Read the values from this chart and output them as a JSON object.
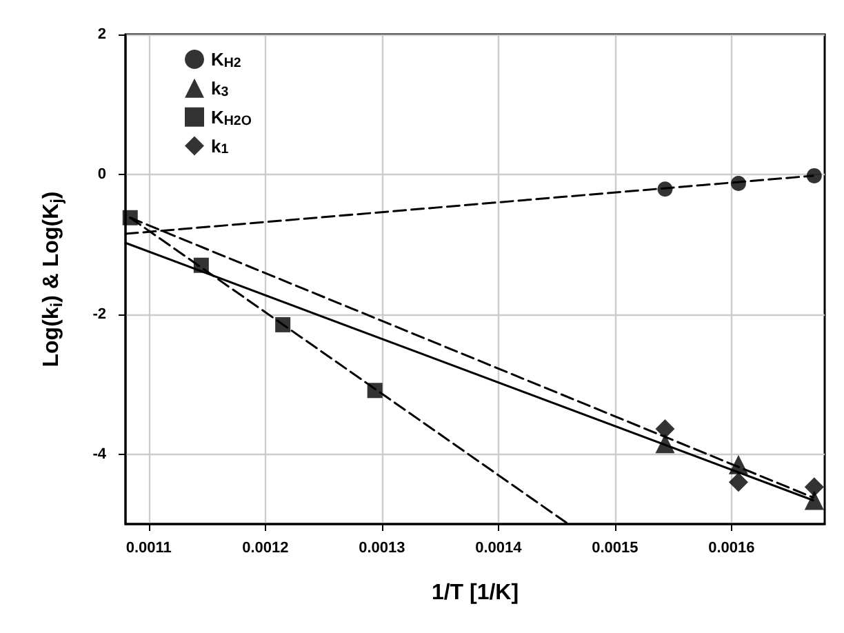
{
  "chart_data": {
    "type": "scatter",
    "xlabel": "1/T [1/K]",
    "ylabel": "Log(k$_{i}$) & Log(K$_{j}$)",
    "xlim": [
      0.00108,
      0.00168
    ],
    "xticks": [
      0.0011,
      0.0012,
      0.0013,
      0.0014,
      0.0015,
      0.0016
    ],
    "ylim": [
      -5,
      2
    ],
    "yticks": [
      -4,
      -2,
      0,
      2
    ],
    "grid": true,
    "legend": "top left",
    "series": [
      {
        "name": "K$_{H2}$",
        "color": "#000000",
        "marker": "circle",
        "x": [
          0.001543,
          0.001606,
          0.001671
        ],
        "values": [
          -0.21,
          -0.13,
          -0.02
        ]
      },
      {
        "name": "k$_{3}$",
        "color": "#000000",
        "marker": "triangle",
        "x": [
          0.001543,
          0.001606,
          0.001671
        ],
        "values": [
          -3.85,
          -4.15,
          -4.66
        ]
      },
      {
        "name": "K$_{H2O}$",
        "color": "#000000",
        "marker": "square",
        "x": [
          0.001084,
          0.001145,
          0.001215,
          0.001294
        ],
        "values": [
          -0.62,
          -1.3,
          -2.15,
          -3.09
        ]
      },
      {
        "name": "k$_{1}$",
        "color": "#000000",
        "marker": "diamond",
        "x": [
          0.001543,
          0.001606,
          0.001671
        ],
        "values": [
          -3.64,
          -4.4,
          -4.47
        ]
      },
      {
        "type": "line",
        "color": "#000000",
        "line_style": "dashed",
        "marker": "none",
        "x": [
          0.00108,
          0.00167
        ],
        "values": [
          -0.85,
          -0.02
        ]
      },
      {
        "type": "line",
        "color": "#000000",
        "line_style": "solid",
        "marker": "none",
        "x": [
          0.00108,
          0.00167
        ],
        "values": [
          -0.98,
          -4.66
        ]
      },
      {
        "type": "line",
        "color": "#000000",
        "line_style": "dashed",
        "marker": "none",
        "x": [
          0.001084,
          0.00167
        ],
        "values": [
          -0.62,
          -4.62
        ]
      },
      {
        "type": "line",
        "color": "#000000",
        "line_style": "dashed",
        "marker": "none",
        "x": [
          0.001084,
          0.00146
        ],
        "values": [
          -0.62,
          -5
        ]
      }
    ]
  }
}
